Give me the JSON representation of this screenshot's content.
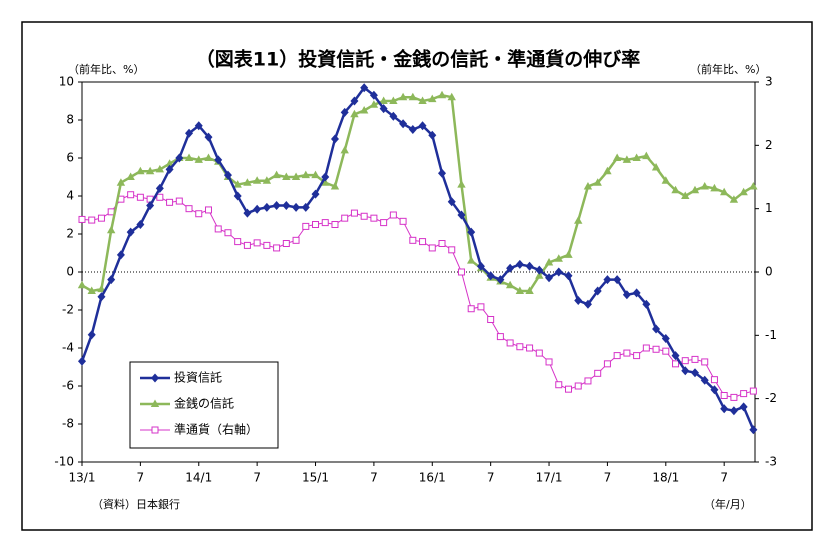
{
  "chart_data": {
    "type": "line",
    "title": "（図表11）投資信託・金銭の信託・準通貨の伸び率",
    "y_label": "（前年比、%）",
    "y2_label": "（前年比、%）",
    "source": "（資料）日本銀行",
    "x_unit": "（年/月）",
    "categories": [
      "13/1",
      null,
      null,
      null,
      null,
      null,
      "7",
      null,
      null,
      null,
      null,
      null,
      "14/1",
      null,
      null,
      null,
      null,
      null,
      "7",
      null,
      null,
      null,
      null,
      null,
      "15/1",
      null,
      null,
      null,
      null,
      null,
      "7",
      null,
      null,
      null,
      null,
      null,
      "16/1",
      null,
      null,
      null,
      null,
      null,
      "7",
      null,
      null,
      null,
      null,
      null,
      "17/1",
      null,
      null,
      null,
      null,
      null,
      "7",
      null,
      null,
      null,
      null,
      null,
      "18/1",
      null,
      null,
      null,
      null,
      null,
      "7",
      null,
      null,
      null
    ],
    "series": [
      {
        "name": "投資信託",
        "color": "#1f2f9a",
        "marker": "diamond",
        "values": [
          -4.7,
          -3.3,
          -1.3,
          -0.4,
          0.9,
          2.1,
          2.5,
          3.5,
          4.4,
          5.4,
          6.0,
          7.3,
          7.7,
          7.1,
          5.9,
          5.1,
          4.0,
          3.1,
          3.3,
          3.4,
          3.5,
          3.5,
          3.4,
          3.4,
          4.1,
          5.0,
          7.0,
          8.4,
          9.0,
          9.7,
          9.3,
          8.6,
          8.2,
          7.8,
          7.5,
          7.7,
          7.2,
          5.2,
          3.7,
          3.0,
          2.1,
          0.3,
          -0.2,
          -0.4,
          0.2,
          0.4,
          0.3,
          0.1,
          -0.3,
          0.0,
          -0.2,
          -1.5,
          -1.7,
          -1.0,
          -0.4,
          -0.4,
          -1.2,
          -1.1,
          -1.7,
          -3.0,
          -3.5,
          -4.4,
          -5.2,
          -5.3,
          -5.7,
          -6.2,
          -7.2,
          -7.3,
          -7.1,
          -8.3
        ]
      },
      {
        "name": "金銭の信託",
        "color": "#8db85a",
        "marker": "triangle",
        "values": [
          -0.7,
          -1.0,
          -0.9,
          2.2,
          4.7,
          5.0,
          5.3,
          5.3,
          5.4,
          5.7,
          6.0,
          6.0,
          5.9,
          6.0,
          5.8,
          5.0,
          4.6,
          4.7,
          4.8,
          4.8,
          5.1,
          5.0,
          5.0,
          5.1,
          5.1,
          4.7,
          4.5,
          6.4,
          8.3,
          8.5,
          8.8,
          9.0,
          9.0,
          9.2,
          9.2,
          9.0,
          9.1,
          9.3,
          9.2,
          4.6,
          0.6,
          0.2,
          -0.3,
          -0.5,
          -0.7,
          -1.0,
          -1.0,
          -0.2,
          0.5,
          0.7,
          0.9,
          2.7,
          4.5,
          4.7,
          5.3,
          6.0,
          5.9,
          6.0,
          6.1,
          5.5,
          4.8,
          4.3,
          4.0,
          4.3,
          4.5,
          4.4,
          4.2,
          3.8,
          4.2,
          4.5
        ]
      },
      {
        "name": "準通貨（右軸）",
        "color": "#d633c8",
        "marker": "square",
        "axis": "y2",
        "values": [
          0.83,
          0.82,
          0.85,
          0.95,
          1.15,
          1.22,
          1.18,
          1.15,
          1.18,
          1.1,
          1.12,
          1.0,
          0.92,
          0.98,
          0.68,
          0.62,
          0.48,
          0.42,
          0.46,
          0.42,
          0.38,
          0.45,
          0.5,
          0.72,
          0.75,
          0.78,
          0.75,
          0.85,
          0.93,
          0.88,
          0.85,
          0.78,
          0.9,
          0.8,
          0.5,
          0.48,
          0.38,
          0.45,
          0.35,
          0.0,
          -0.58,
          -0.55,
          -0.75,
          -1.02,
          -1.12,
          -1.18,
          -1.2,
          -1.28,
          -1.42,
          -1.78,
          -1.85,
          -1.8,
          -1.72,
          -1.6,
          -1.45,
          -1.32,
          -1.28,
          -1.32,
          -1.2,
          -1.22,
          -1.25,
          -1.45,
          -1.4,
          -1.38,
          -1.42,
          -1.7,
          -1.95,
          -1.98,
          -1.92,
          -1.88
        ]
      }
    ],
    "ylim": [
      -10,
      10
    ],
    "yticks": [
      10,
      8,
      6,
      4,
      2,
      0,
      -2,
      -4,
      -6,
      -8,
      -10
    ],
    "y2lim": [
      -3,
      3
    ],
    "y2ticks": [
      3,
      2,
      1,
      0,
      -1,
      -2,
      -3
    ],
    "negative_tick_color": "#e00000",
    "zero_line": true,
    "legend": "lower left"
  }
}
